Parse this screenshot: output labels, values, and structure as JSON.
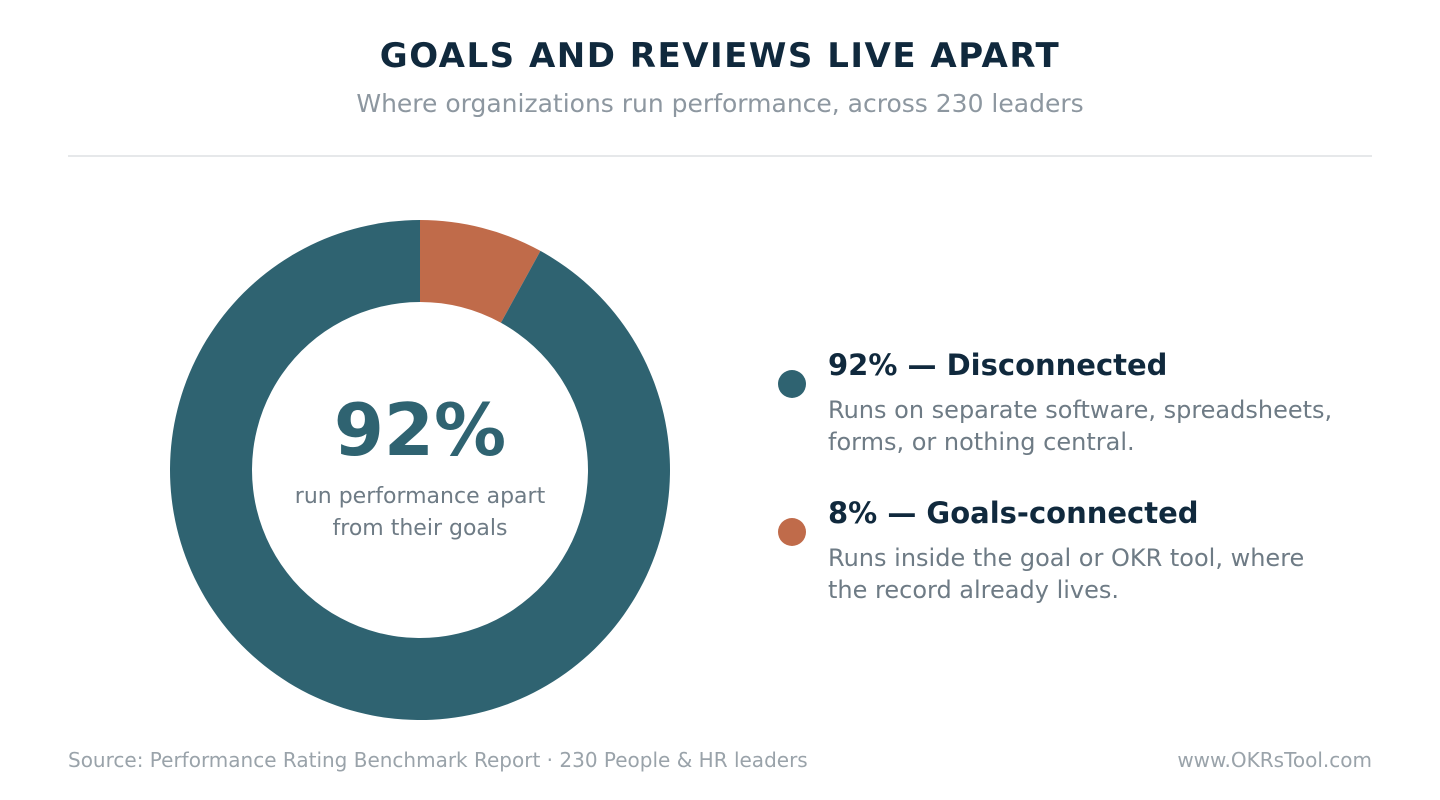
{
  "header": {
    "title": "GOALS AND REVIEWS LIVE APART",
    "subtitle": "Where organizations run performance, across 230 leaders"
  },
  "chart_data": {
    "type": "pie",
    "style": "donut",
    "title": "GOALS AND REVIEWS LIVE APART",
    "subtitle": "Where organizations run performance, across 230 leaders",
    "series": [
      {
        "name": "Goals-connected",
        "value": 8,
        "color": "#c06b4a"
      },
      {
        "name": "Disconnected",
        "value": 92,
        "color": "#2f6371"
      }
    ],
    "legend_position": "right"
  },
  "center": {
    "value": "92%",
    "value_color": "#2f6371",
    "caption_lines": [
      "run performance apart",
      "from their goals"
    ]
  },
  "legend": [
    {
      "heading": "92% — Disconnected",
      "color": "#2f6371",
      "desc_lines": [
        "Runs on separate software, spreadsheets,",
        "forms, or nothing central."
      ]
    },
    {
      "heading": "8% — Goals-connected",
      "color": "#c06b4a",
      "desc_lines": [
        "Runs inside the goal or OKR tool, where",
        "the record already lives."
      ]
    }
  ],
  "footer": {
    "source": "Source: Performance Rating Benchmark Report · 230 People & HR leaders",
    "site": "www.OKRsTool.com"
  }
}
